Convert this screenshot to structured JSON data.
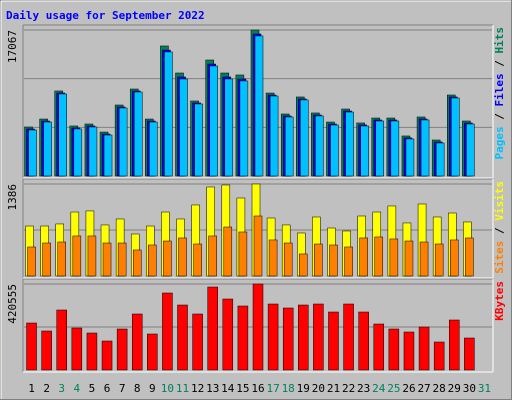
{
  "title": "Daily usage for September 2022",
  "chart_data": [
    {
      "type": "bar",
      "series": [
        {
          "name": "Pages",
          "color": "#00c0ff",
          "values": [
            5380,
            6310,
            9590,
            5500,
            5730,
            4790,
            7950,
            9820,
            6310,
            14500,
            11340,
            8420,
            12860,
            11340,
            11110,
            16370,
            9350,
            6900,
            8890,
            7020,
            5960,
            7480,
            5850,
            6430,
            6430,
            4330,
            6550,
            3860,
            9120,
            6080,
            null
          ]
        },
        {
          "name": "Files",
          "color": "#0000ff",
          "values": [
            5500,
            6430,
            9710,
            5620,
            5850,
            4910,
            8070,
            9940,
            6430,
            14720,
            11580,
            8540,
            13090,
            11580,
            11340,
            16600,
            9470,
            7020,
            9010,
            7140,
            6080,
            7600,
            5970,
            6550,
            6550,
            4450,
            6670,
            3980,
            9240,
            6200,
            null
          ]
        },
        {
          "name": "Hits",
          "color": "#00805c",
          "values": [
            5730,
            6660,
            9940,
            5850,
            6080,
            5140,
            8300,
            10170,
            6660,
            15200,
            12040,
            8770,
            13560,
            12040,
            11810,
            17067,
            9700,
            7250,
            9240,
            7370,
            6310,
            7830,
            6200,
            6780,
            6780,
            4680,
            6900,
            4210,
            9470,
            6430,
            null
          ]
        }
      ],
      "legend_separator": " / ",
      "ylim": [
        0,
        17067
      ],
      "yticks": [
        17067
      ],
      "grid_divisions": 3
    },
    {
      "type": "bar",
      "series": [
        {
          "name": "Sites",
          "color": "#ff8000",
          "values": [
            437,
            497,
            512,
            603,
            603,
            497,
            497,
            392,
            467,
            527,
            573,
            482,
            603,
            738,
            663,
            904,
            543,
            497,
            332,
            482,
            467,
            437,
            573,
            588,
            558,
            527,
            512,
            482,
            543,
            573,
            null
          ]
        },
        {
          "name": "Visits",
          "color": "#ffff00",
          "values": [
            753,
            753,
            784,
            964,
            980,
            769,
            859,
            633,
            753,
            964,
            859,
            1070,
            1341,
            1371,
            1175,
            1386,
            874,
            769,
            648,
            889,
            723,
            678,
            904,
            964,
            1055,
            799,
            1085,
            889,
            949,
            814,
            null
          ]
        }
      ],
      "legend_separator": " / ",
      "ylim": [
        0,
        1386
      ],
      "yticks": [
        1386
      ],
      "grid_divisions": 2
    },
    {
      "type": "bar",
      "categories": [
        "1",
        "2",
        "3",
        "4",
        "5",
        "6",
        "7",
        "8",
        "9",
        "10",
        "11",
        "12",
        "13",
        "14",
        "15",
        "16",
        "17",
        "18",
        "19",
        "20",
        "21",
        "22",
        "23",
        "24",
        "25",
        "26",
        "27",
        "28",
        "29",
        "30",
        "31"
      ],
      "category_colors": [
        "#000000",
        "#000000",
        "#008060",
        "#008060",
        "#000000",
        "#000000",
        "#000000",
        "#000000",
        "#000000",
        "#008060",
        "#008060",
        "#000000",
        "#000000",
        "#000000",
        "#000000",
        "#000000",
        "#008060",
        "#008060",
        "#000000",
        "#000000",
        "#000000",
        "#000000",
        "#000000",
        "#008060",
        "#008060",
        "#000000",
        "#000000",
        "#000000",
        "#000000",
        "#000000",
        "#008060"
      ],
      "series": [
        {
          "name": "KBytes",
          "color": "#ff0000",
          "values": [
            229830,
            190700,
            293400,
            205380,
            180930,
            141810,
            200490,
            273840,
            176040,
            376530,
            317850,
            273840,
            405870,
            347190,
            312960,
            420555,
            322740,
            303180,
            317850,
            322740,
            283620,
            322740,
            283620,
            224940,
            200490,
            185820,
            210270,
            136920,
            244500,
            156480,
            null
          ]
        }
      ],
      "ylim": [
        0,
        420555
      ],
      "yticks": [
        420555
      ],
      "grid_divisions": 2
    }
  ]
}
